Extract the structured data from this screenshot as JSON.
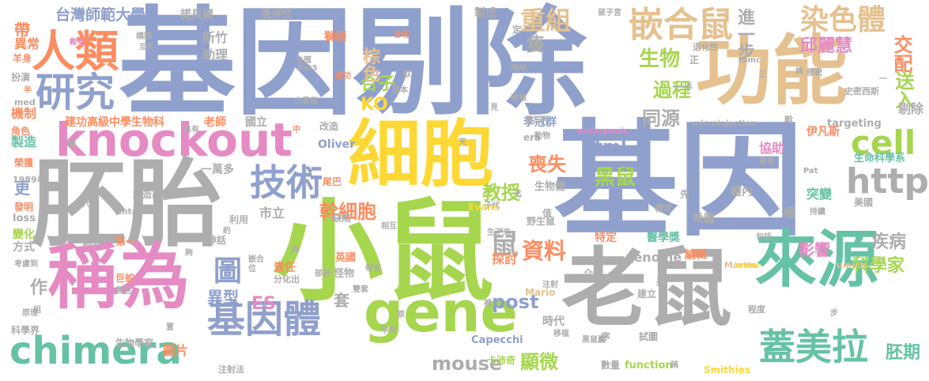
{
  "palette": {
    "blue": "#8fa0cc",
    "gray": "#adadad",
    "green": "#a6d64e",
    "yellow": "#fdd835",
    "tan": "#e5c18f",
    "pink": "#e58ac3",
    "teal": "#66c2a5",
    "orange": "#fc8d62"
  },
  "words": [
    "基因剔除",
    "基因",
    "胚胎",
    "細胞",
    "小鼠",
    "老鼠",
    "功能",
    "knockout",
    "gene",
    "稱為",
    "來源",
    "人類",
    "研究",
    "技術",
    "基因體",
    "chimera",
    "嵌合鼠",
    "染色體",
    "cell",
    "http",
    "蓋美拉",
    "重組",
    "進一步",
    "交配",
    "邱麗慧",
    "台灣師範大學",
    "諾貝爾",
    "遺傳性",
    "製成",
    "生物",
    "過程",
    "送入",
    "剔除",
    "同源",
    "黑鼠",
    "喪失",
    "教授",
    "幹細胞",
    "資料",
    "鼠",
    "圖",
    "異型",
    "ES",
    "post",
    "mouse",
    "顯微",
    "胚期",
    "科學家",
    "疾病",
    "影響",
    "突變",
    "KO",
    "合子",
    "棕色",
    "隻",
    "html",
    "生物體",
    "建功高級中學生物科",
    "老師",
    "國立",
    "新竹",
    "助理",
    "帶",
    "異常",
    "機制",
    "製造",
    "項",
    "更",
    "作",
    "變化",
    "方式",
    "套",
    "責任",
    "探討",
    "編輯",
    "特定",
    "醫學獎",
    "圖片",
    "卡沛奇",
    "數量",
    "function",
    "時代",
    "Capecchi",
    "Mario",
    "Martin",
    "Smithies",
    "genome",
    "targeting",
    "Oliver",
    "Evans",
    "市立",
    "一萬多",
    "生命科學系",
    "伊凡斯",
    "協助",
    "體內",
    "美國",
    "希臘",
    "生物學家",
    "李冠群",
    "科學界",
    "1989年",
    "era",
    "embryonic",
    "microinjection",
    "hemizygote",
    "www",
    "umich",
    "mta",
    "loss",
    "med",
    "Pat",
    "Pat5",
    "tamc",
    "第一",
    "源自",
    "神話",
    "英國",
    "怪物",
    "注射法",
    "尾巴",
    "創造出",
    "巨蛇",
    "野生鼠",
    "缺陷",
    "利用",
    "分化出",
    "試圖",
    "介紹",
    "建立",
    "序",
    "程度",
    "近",
    "榮獲",
    "發明",
    "標定",
    "標靶",
    "史密西斯",
    "一半",
    "正",
    "退化性",
    "株",
    "三",
    "羊身",
    "扮演",
    "角色",
    "原理",
    "獅頭",
    "生殖",
    "成功",
    "含有",
    "取",
    "原本",
    "小黑鼠",
    "換掉",
    "破壞",
    "見",
    "第三代",
    "動物",
    "天",
    "中",
    "改造",
    "生下來",
    "相互",
    "注射",
    "孕母",
    "移植",
    "黑鼠囊",
    "值",
    "迄",
    "子代",
    "鼠子宮",
    "持續",
    "包括",
    "發育",
    "幹",
    "定",
    "先",
    "夠",
    "組",
    "代",
    "嵌合",
    "部份",
    "具",
    "帶有",
    "雙套",
    "具有",
    "裡",
    "一",
    "步",
    "稱",
    "半",
    "考慮到",
    "難毛",
    "互換",
    "構築",
    "黑色",
    "約",
    "標",
    "位",
    "置",
    "原"
  ]
}
